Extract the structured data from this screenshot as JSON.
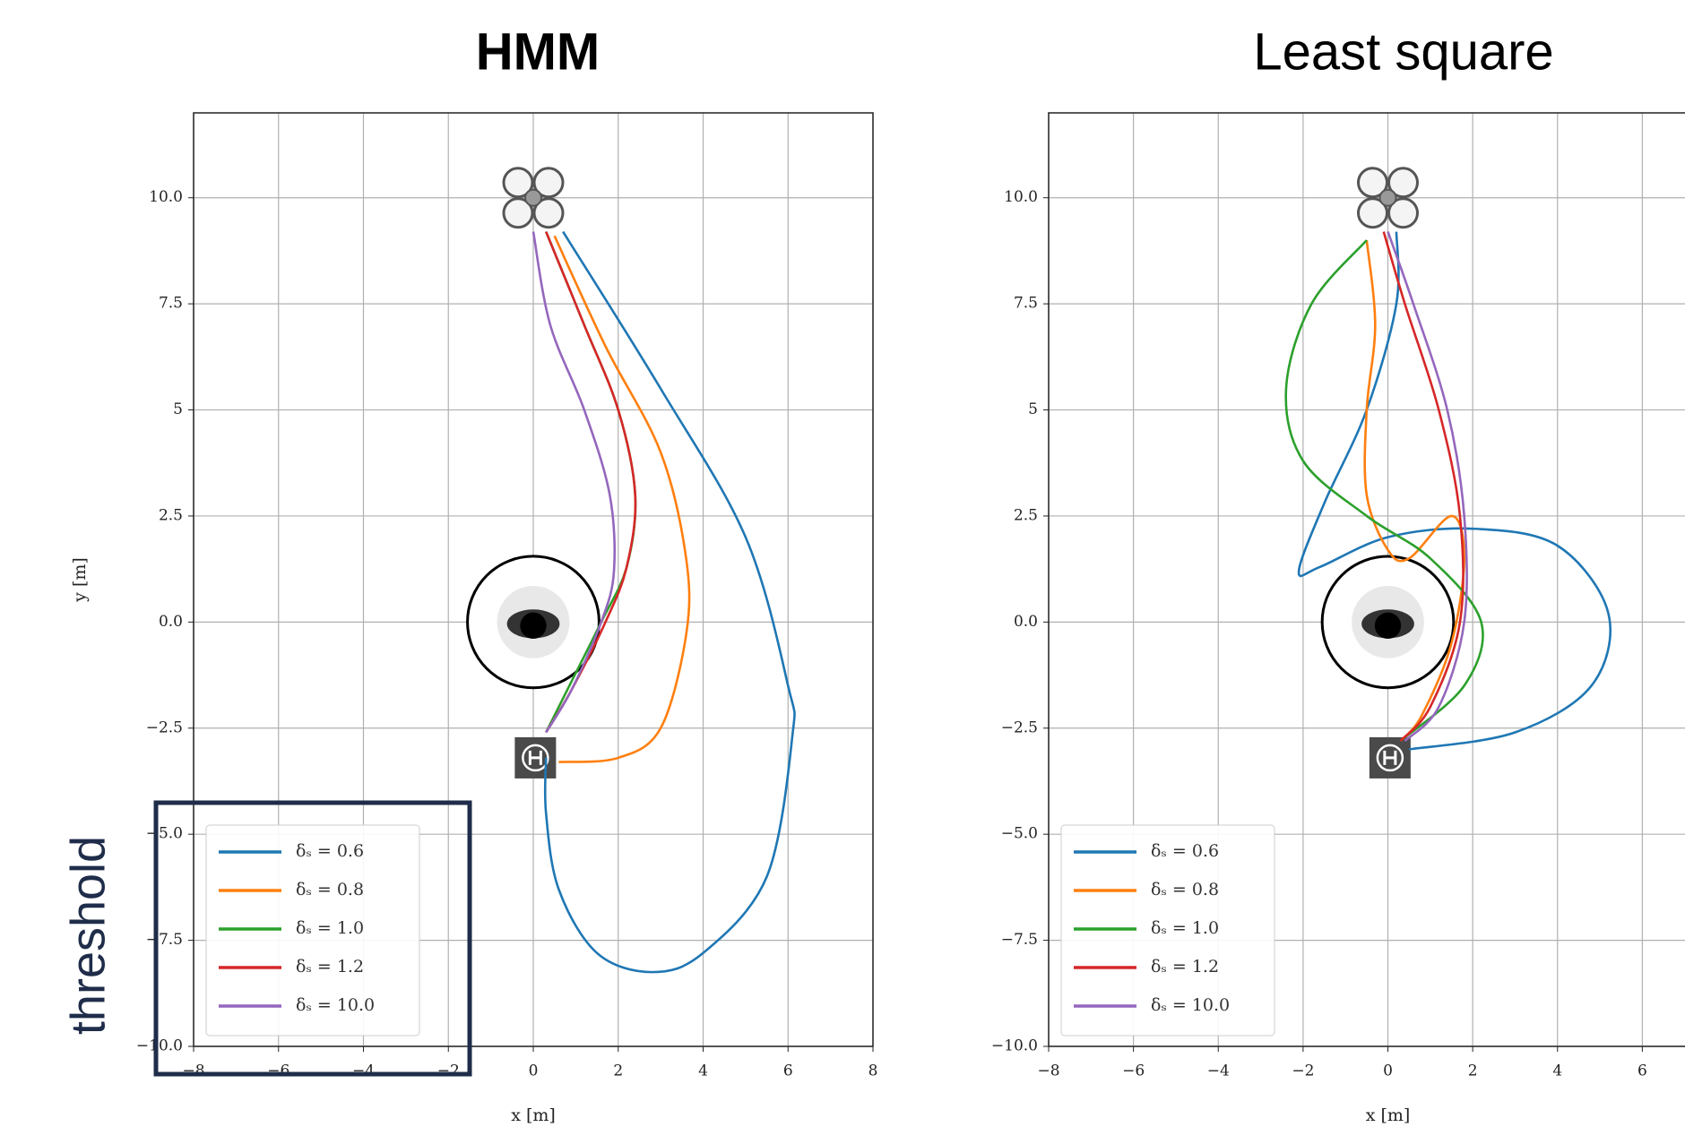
{
  "chart_data": [
    {
      "type": "line",
      "title": "HMM",
      "xlabel": "x [m]",
      "ylabel": "y [m]",
      "xlim": [
        -8,
        8
      ],
      "ylim": [
        -10,
        12
      ],
      "xticks": [
        {
          "value": -8,
          "label": "−8"
        },
        {
          "value": -6,
          "label": "−6"
        },
        {
          "value": -4,
          "label": "−4"
        },
        {
          "value": -2,
          "label": "−2"
        },
        0,
        2,
        4,
        6,
        8
      ],
      "yticks": [
        {
          "value": -10,
          "label": "−10.0"
        },
        {
          "value": -7.5,
          "label": "−7.5"
        },
        {
          "value": -5,
          "label": "−5.0"
        },
        {
          "value": -2.5,
          "label": "−2.5"
        },
        {
          "value": 0,
          "label": "0.0"
        },
        2.5,
        5,
        7.5,
        {
          "value": 10,
          "label": "10.0"
        }
      ],
      "grid": true,
      "legend": "lower left",
      "annotation": "threshold",
      "series": [
        {
          "name": "δₛ = 0.6",
          "color": "#1f77b4",
          "x": [
            0.7,
            3,
            5,
            6,
            6.1,
            5.5,
            4,
            2.8,
            1.5,
            0.6,
            0.3,
            0.3
          ],
          "values": [
            9.2,
            5.5,
            2,
            -1.5,
            -2.7,
            -6,
            -7.8,
            -8.25,
            -7.8,
            -6.3,
            -4.5,
            -3.2
          ]
        },
        {
          "name": "δₛ = 0.8",
          "color": "#ff7f0e",
          "x": [
            0.5,
            1.7,
            3,
            3.6,
            3.6,
            3,
            2,
            0.6
          ],
          "values": [
            9.1,
            6.5,
            4,
            1.5,
            -0.3,
            -2.5,
            -3.2,
            -3.3
          ]
        },
        {
          "name": "δₛ = 1.0",
          "color": "#2ca02c",
          "x": [
            0.3,
            1.2,
            2,
            2.4,
            2.2,
            1.6,
            0.8,
            0.3
          ],
          "values": [
            9.2,
            7,
            5,
            3,
            1.3,
            0,
            -1.6,
            -2.6
          ]
        },
        {
          "name": "δₛ = 1.2",
          "color": "#d62728",
          "x": [
            0.3,
            1.2,
            2,
            2.4,
            2.2,
            1.7,
            0.9,
            0.3
          ],
          "values": [
            9.2,
            7,
            5,
            3,
            1.3,
            0,
            -1.6,
            -2.6
          ]
        },
        {
          "name": "δₛ = 10.0",
          "color": "#9467bd",
          "x": [
            0,
            0.4,
            1.2,
            1.8,
            1.9,
            1.6,
            0.9,
            0.3
          ],
          "values": [
            9.2,
            7,
            5,
            3,
            1.2,
            0,
            -1.6,
            -2.6
          ]
        }
      ]
    },
    {
      "type": "line",
      "title": "Least square",
      "xlabel": "x [m]",
      "xlim": [
        -8,
        8
      ],
      "ylim": [
        -10,
        12
      ],
      "xticks": [
        {
          "value": -8,
          "label": "−8"
        },
        {
          "value": -6,
          "label": "−6"
        },
        {
          "value": -4,
          "label": "−4"
        },
        {
          "value": -2,
          "label": "−2"
        },
        0,
        2,
        4,
        6
      ],
      "yticks": [
        {
          "value": -10,
          "label": "−10.0"
        },
        {
          "value": -7.5,
          "label": "−7.5"
        },
        {
          "value": -5,
          "label": "−5.0"
        },
        {
          "value": -2.5,
          "label": "−2.5"
        },
        {
          "value": 0,
          "label": "0.0"
        },
        2.5,
        5,
        7.5,
        {
          "value": 10,
          "label": "10.0"
        }
      ],
      "grid": true,
      "legend": "lower left",
      "series": [
        {
          "name": "δₛ = 0.6",
          "color": "#1f77b4",
          "x": [
            0.2,
            0.2,
            -0.5,
            -1.5,
            -2.1,
            -1.6,
            0,
            2,
            4,
            5.2,
            4.8,
            3,
            0.5
          ],
          "values": [
            9.2,
            7.5,
            5,
            2.8,
            1.2,
            1.3,
            2,
            2.2,
            1.8,
            0.2,
            -1.5,
            -2.6,
            -3
          ]
        },
        {
          "name": "δₛ = 0.8",
          "color": "#ff7f0e",
          "x": [
            -0.5,
            -0.3,
            -0.5,
            -0.5,
            0,
            0.5,
            1.5,
            1.8,
            1.5,
            0.8,
            0.3
          ],
          "values": [
            9,
            7,
            5,
            3,
            1.7,
            1.5,
            2.5,
            1.5,
            -0.5,
            -2.2,
            -2.8
          ]
        },
        {
          "name": "δₛ = 1.0",
          "color": "#2ca02c",
          "x": [
            -0.5,
            -1.8,
            -2.4,
            -2,
            -0.5,
            1,
            2.2,
            1.8,
            0.3
          ],
          "values": [
            9,
            7.5,
            5.5,
            3.8,
            2.5,
            1.5,
            0,
            -1.5,
            -2.8
          ]
        },
        {
          "name": "δₛ = 1.2",
          "color": "#d62728",
          "x": [
            -0.1,
            0.4,
            1.2,
            1.7,
            1.7,
            1,
            0.3
          ],
          "values": [
            9.2,
            7.5,
            5,
            2.5,
            0,
            -2,
            -2.8
          ]
        },
        {
          "name": "δₛ = 10.0",
          "color": "#9467bd",
          "x": [
            0,
            0.6,
            1.4,
            1.8,
            1.8,
            1.2,
            0.4
          ],
          "values": [
            9.2,
            7.5,
            5,
            2.5,
            0,
            -2,
            -2.8
          ]
        }
      ]
    }
  ]
}
